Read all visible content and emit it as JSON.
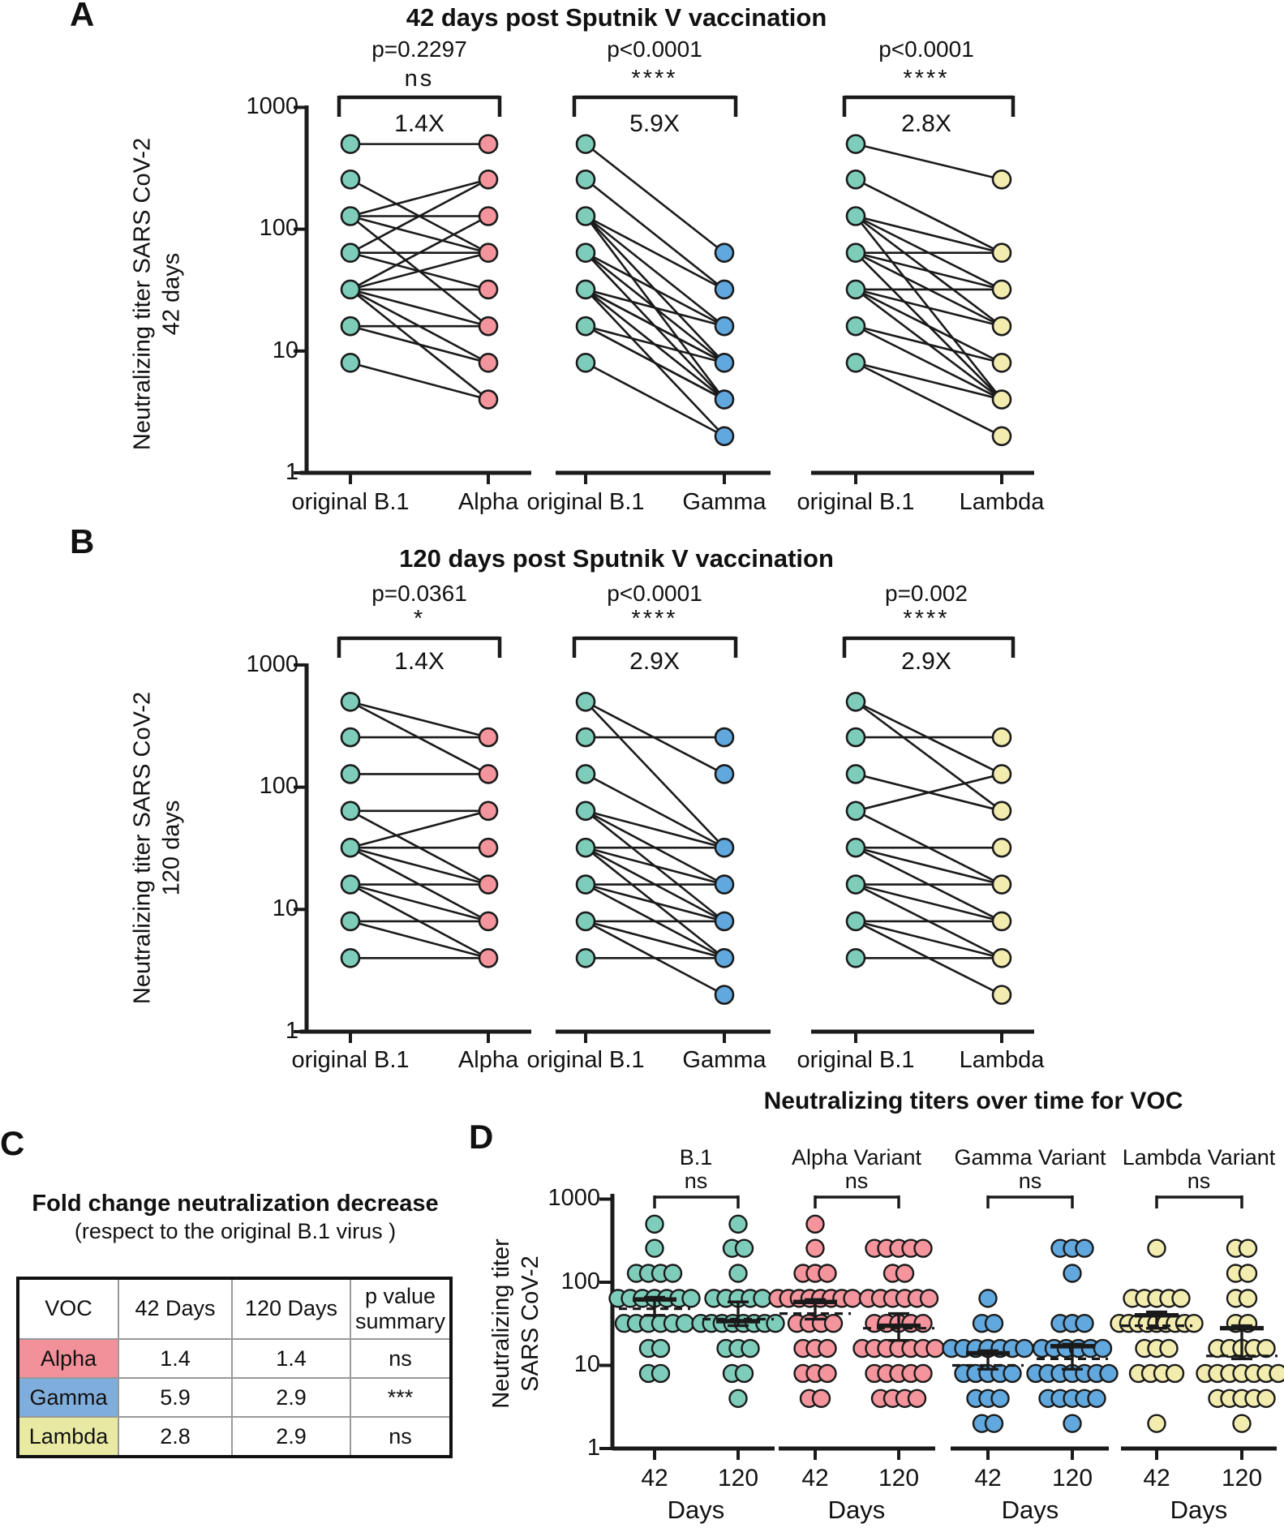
{
  "colors": {
    "teal": "#7ECDBB",
    "pink": "#F4949C",
    "blue": "#61A8DE",
    "yellow": "#F3ECAF",
    "stroke": "#1a1a1a",
    "table_alpha": "#F2919A",
    "table_gamma": "#7FAEDD",
    "table_lambda": "#E8EAA4"
  },
  "chart_data": {
    "panel_a": {
      "label": "A",
      "type": "paired-line",
      "title": "42 days post Sputnik V vaccination",
      "y_axis": {
        "label_line1": "Neutralizing titer SARS CoV-2",
        "label_line2": "42 days",
        "ticks": [
          "1000",
          "100",
          "10",
          "1"
        ],
        "scale": "log",
        "range": [
          1,
          1000
        ]
      },
      "plots": [
        {
          "p_value": "p=0.2297",
          "significance": "ns",
          "fold_change": "1.4X",
          "left_label": "original B.1",
          "right_label": "Alpha",
          "left_color": "teal",
          "right_color": "pink",
          "pairs": [
            [
              500,
              500
            ],
            [
              256,
              64
            ],
            [
              128,
              256
            ],
            [
              128,
              128
            ],
            [
              128,
              64
            ],
            [
              128,
              16
            ],
            [
              64,
              256
            ],
            [
              64,
              64
            ],
            [
              64,
              32
            ],
            [
              32,
              128
            ],
            [
              32,
              64
            ],
            [
              32,
              32
            ],
            [
              32,
              16
            ],
            [
              32,
              8
            ],
            [
              32,
              4
            ],
            [
              16,
              16
            ],
            [
              16,
              8
            ],
            [
              8,
              4
            ]
          ]
        },
        {
          "p_value": "p<0.0001",
          "significance": "****",
          "fold_change": "5.9X",
          "left_label": "original B.1",
          "right_label": "Gamma",
          "left_color": "teal",
          "right_color": "blue",
          "pairs": [
            [
              500,
              64
            ],
            [
              256,
              32
            ],
            [
              128,
              32
            ],
            [
              128,
              16
            ],
            [
              128,
              8
            ],
            [
              128,
              4
            ],
            [
              64,
              16
            ],
            [
              64,
              8
            ],
            [
              64,
              4
            ],
            [
              32,
              16
            ],
            [
              32,
              8
            ],
            [
              32,
              8
            ],
            [
              32,
              4
            ],
            [
              32,
              2
            ],
            [
              16,
              8
            ],
            [
              16,
              4
            ],
            [
              16,
              4
            ],
            [
              8,
              2
            ]
          ]
        },
        {
          "p_value": "p<0.0001",
          "significance": "****",
          "fold_change": "2.8X",
          "left_label": "original B.1",
          "right_label": "Lambda",
          "left_color": "teal",
          "right_color": "yellow",
          "pairs": [
            [
              500,
              256
            ],
            [
              256,
              64
            ],
            [
              128,
              64
            ],
            [
              128,
              32
            ],
            [
              128,
              16
            ],
            [
              128,
              4
            ],
            [
              64,
              64
            ],
            [
              64,
              32
            ],
            [
              64,
              16
            ],
            [
              64,
              4
            ],
            [
              32,
              32
            ],
            [
              32,
              16
            ],
            [
              32,
              8
            ],
            [
              32,
              4
            ],
            [
              16,
              8
            ],
            [
              16,
              4
            ],
            [
              8,
              4
            ],
            [
              8,
              2
            ]
          ]
        }
      ]
    },
    "panel_b": {
      "label": "B",
      "type": "paired-line",
      "title": "120 days post Sputnik V vaccination",
      "y_axis": {
        "label_line1": "Neutralizing titer SARS CoV-2",
        "label_line2": "120 days",
        "ticks": [
          "1000",
          "100",
          "10",
          "1"
        ],
        "scale": "log",
        "range": [
          1,
          1000
        ]
      },
      "plots": [
        {
          "p_value": "p=0.0361",
          "significance": "*",
          "fold_change": "1.4X",
          "left_label": "original B.1",
          "right_label": "Alpha",
          "left_color": "teal",
          "right_color": "pink",
          "pairs": [
            [
              500,
              256
            ],
            [
              500,
              128
            ],
            [
              256,
              256
            ],
            [
              128,
              128
            ],
            [
              64,
              64
            ],
            [
              64,
              16
            ],
            [
              32,
              64
            ],
            [
              32,
              32
            ],
            [
              32,
              16
            ],
            [
              32,
              8
            ],
            [
              16,
              16
            ],
            [
              16,
              8
            ],
            [
              16,
              4
            ],
            [
              8,
              8
            ],
            [
              8,
              4
            ],
            [
              4,
              4
            ]
          ]
        },
        {
          "p_value": "p<0.0001",
          "significance": "****",
          "fold_change": "2.9X",
          "left_label": "original B.1",
          "right_label": "Gamma",
          "left_color": "teal",
          "right_color": "blue",
          "pairs": [
            [
              500,
              128
            ],
            [
              500,
              32
            ],
            [
              256,
              256
            ],
            [
              128,
              32
            ],
            [
              64,
              32
            ],
            [
              64,
              16
            ],
            [
              64,
              8
            ],
            [
              32,
              32
            ],
            [
              32,
              16
            ],
            [
              32,
              8
            ],
            [
              32,
              4
            ],
            [
              16,
              16
            ],
            [
              16,
              8
            ],
            [
              16,
              4
            ],
            [
              8,
              8
            ],
            [
              8,
              4
            ],
            [
              8,
              2
            ],
            [
              4,
              4
            ]
          ]
        },
        {
          "p_value": "p=0.002",
          "significance": "****",
          "fold_change": "2.9X",
          "left_label": "original B.1",
          "right_label": "Lambda",
          "left_color": "teal",
          "right_color": "yellow",
          "pairs": [
            [
              500,
              128
            ],
            [
              500,
              64
            ],
            [
              256,
              256
            ],
            [
              128,
              64
            ],
            [
              64,
              128
            ],
            [
              64,
              16
            ],
            [
              32,
              32
            ],
            [
              32,
              16
            ],
            [
              32,
              8
            ],
            [
              16,
              16
            ],
            [
              16,
              8
            ],
            [
              16,
              4
            ],
            [
              8,
              8
            ],
            [
              8,
              4
            ],
            [
              8,
              2
            ],
            [
              4,
              4
            ]
          ]
        }
      ]
    },
    "panel_c": {
      "label": "C",
      "type": "table",
      "title": "Fold change neutralization decrease",
      "subtitle": "(respect to the original B.1 virus )",
      "headers": [
        "VOC",
        "42 Days",
        "120 Days",
        "p value summary"
      ],
      "rows": [
        {
          "voc": "Alpha",
          "d42": "1.4",
          "d120": "1.4",
          "p": "ns",
          "color_key": "table_alpha"
        },
        {
          "voc": "Gamma",
          "d42": "5.9",
          "d120": "2.9",
          "p": "***",
          "color_key": "table_gamma"
        },
        {
          "voc": "Lambda",
          "d42": "2.8",
          "d120": "2.9",
          "p": "ns",
          "color_key": "table_lambda"
        }
      ]
    },
    "panel_d": {
      "label": "D",
      "type": "scatter",
      "title": "Neutralizing titers over time for VOC",
      "y_axis": {
        "label_line1": "Neutralizing titer",
        "label_line2": "SARS CoV-2",
        "ticks": [
          "1000",
          "100",
          "10",
          "1"
        ],
        "scale": "log",
        "range": [
          1,
          1000
        ]
      },
      "x_label": "Days",
      "groups": [
        {
          "name": "B.1",
          "significance": "ns",
          "color": "teal",
          "columns": [
            {
              "day": "42",
              "points": [
                [
                  500,
                  1
                ],
                [
                  256,
                  1
                ],
                [
                  128,
                  4
                ],
                [
                  64,
                  7
                ],
                [
                  32,
                  6
                ],
                [
                  16,
                  2
                ],
                [
                  8,
                  2
                ]
              ],
              "median": 62,
              "q1": 40,
              "q3": 66,
              "dashed_mean": 48
            },
            {
              "day": "120",
              "points": [
                [
                  500,
                  1
                ],
                [
                  256,
                  2
                ],
                [
                  128,
                  1
                ],
                [
                  64,
                  5
                ],
                [
                  32,
                  8
                ],
                [
                  16,
                  3
                ],
                [
                  8,
                  2
                ],
                [
                  4,
                  1
                ]
              ],
              "median": 34,
              "q1": 30,
              "q3": 58,
              "dashed_mean": 36
            }
          ]
        },
        {
          "name": "Alpha Variant",
          "significance": "ns",
          "color": "pink",
          "columns": [
            {
              "day": "42",
              "points": [
                [
                  500,
                  1
                ],
                [
                  256,
                  1
                ],
                [
                  128,
                  3
                ],
                [
                  64,
                  8
                ],
                [
                  32,
                  4
                ],
                [
                  16,
                  3
                ],
                [
                  8,
                  3
                ],
                [
                  4,
                  2
                ]
              ],
              "median": 58,
              "q1": 36,
              "q3": 62,
              "dashed_mean": 42
            },
            {
              "day": "120",
              "points": [
                [
                  256,
                  5
                ],
                [
                  128,
                  2
                ],
                [
                  64,
                  6
                ],
                [
                  32,
                  5
                ],
                [
                  16,
                  7
                ],
                [
                  8,
                  5
                ],
                [
                  4,
                  4
                ]
              ],
              "median": 30,
              "q1": 20,
              "q3": 42,
              "dashed_mean": 28
            }
          ]
        },
        {
          "name": "Gamma Variant",
          "significance": "ns",
          "color": "blue",
          "columns": [
            {
              "day": "42",
              "points": [
                [
                  64,
                  1
                ],
                [
                  32,
                  2
                ],
                [
                  16,
                  7
                ],
                [
                  8,
                  5
                ],
                [
                  4,
                  3
                ],
                [
                  2,
                  2
                ]
              ],
              "median": 14,
              "q1": 9,
              "q3": 15,
              "dashed_mean": 10
            },
            {
              "day": "120",
              "points": [
                [
                  256,
                  3
                ],
                [
                  128,
                  1
                ],
                [
                  32,
                  3
                ],
                [
                  16,
                  6
                ],
                [
                  8,
                  7
                ],
                [
                  4,
                  5
                ],
                [
                  2,
                  1
                ]
              ],
              "median": 17,
              "q1": 9,
              "q3": 18,
              "dashed_mean": 12
            }
          ]
        },
        {
          "name": "Lambda Variant",
          "significance": "ns",
          "color": "yellow",
          "columns": [
            {
              "day": "42",
              "points": [
                [
                  256,
                  1
                ],
                [
                  64,
                  5
                ],
                [
                  32,
                  9
                ],
                [
                  16,
                  3
                ],
                [
                  8,
                  4
                ],
                [
                  2,
                  1
                ]
              ],
              "median": 40,
              "q1": 28,
              "q3": 44,
              "dashed_mean": 30
            },
            {
              "day": "120",
              "points": [
                [
                  256,
                  2
                ],
                [
                  128,
                  2
                ],
                [
                  64,
                  2
                ],
                [
                  32,
                  2
                ],
                [
                  16,
                  5
                ],
                [
                  8,
                  7
                ],
                [
                  4,
                  5
                ],
                [
                  2,
                  1
                ]
              ],
              "median": 28,
              "q1": 12,
              "q3": 30,
              "dashed_mean": 13
            }
          ]
        }
      ]
    }
  }
}
